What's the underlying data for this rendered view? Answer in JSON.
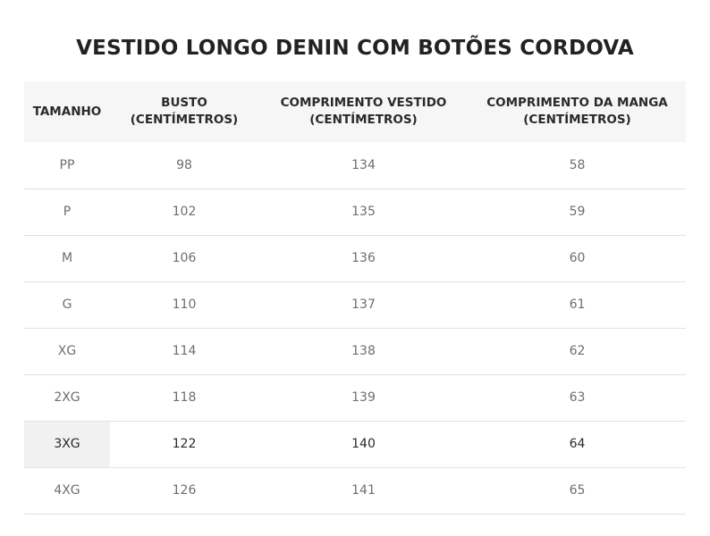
{
  "page_title": "VESTIDO LONGO DENIN COM BOTÕES CORDOVA",
  "table": {
    "headers": [
      {
        "line1": "TAMANHO",
        "line2": ""
      },
      {
        "line1": "BUSTO",
        "line2": "(CENTÍMETROS)"
      },
      {
        "line1": "COMPRIMENTO VESTIDO",
        "line2": "(CENTÍMETROS)"
      },
      {
        "line1": "COMPRIMENTO DA MANGA",
        "line2": "(CENTÍMETROS)"
      }
    ],
    "rows": [
      {
        "size": "PP",
        "bust": "98",
        "length": "134",
        "sleeve": "58"
      },
      {
        "size": "P",
        "bust": "102",
        "length": "135",
        "sleeve": "59"
      },
      {
        "size": "M",
        "bust": "106",
        "length": "136",
        "sleeve": "60"
      },
      {
        "size": "G",
        "bust": "110",
        "length": "137",
        "sleeve": "61"
      },
      {
        "size": "XG",
        "bust": "114",
        "length": "138",
        "sleeve": "62"
      },
      {
        "size": "2XG",
        "bust": "118",
        "length": "139",
        "sleeve": "63"
      },
      {
        "size": "3XG",
        "bust": "122",
        "length": "140",
        "sleeve": "64"
      },
      {
        "size": "4XG",
        "bust": "126",
        "length": "141",
        "sleeve": "65"
      }
    ],
    "highlighted_row": "3XG"
  },
  "colors": {
    "header_background": "#f6f6f6",
    "row_divider": "#e2e2e2",
    "highlight_cell": "#f1f1f1",
    "text_muted": "#6e6e6e",
    "text_dark": "#2a2a2a"
  }
}
